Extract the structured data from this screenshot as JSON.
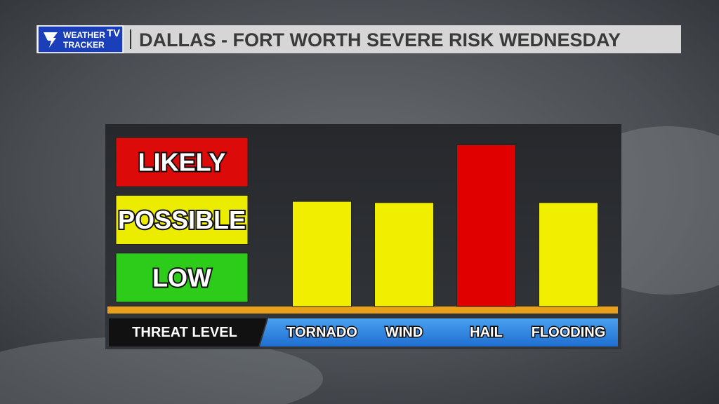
{
  "chart_data": {
    "type": "bar",
    "title": "DALLAS - FORT WORTH SEVERE RISK WEDNESDAY",
    "branding": {
      "line1": "WEATHER",
      "line2": "TRACKER",
      "badge": "TV"
    },
    "ylabel": "THREAT LEVEL",
    "categories": [
      "TORNADO",
      "WIND",
      "HAIL",
      "FLOODING"
    ],
    "values": [
      1.82,
      1.8,
      2.8,
      1.8
    ],
    "colors": [
      "#f2ee00",
      "#f2ee00",
      "#e00000",
      "#f2ee00"
    ],
    "ylim": [
      0,
      3
    ],
    "yticks": [
      {
        "value": 0.5,
        "label": "LOW"
      },
      {
        "value": 1.5,
        "label": "POSSIBLE"
      },
      {
        "value": 2.5,
        "label": "LIKELY"
      }
    ],
    "ytick_colors": [
      "#2ecc1a",
      "#ecec00",
      "#dd0a0a"
    ]
  }
}
